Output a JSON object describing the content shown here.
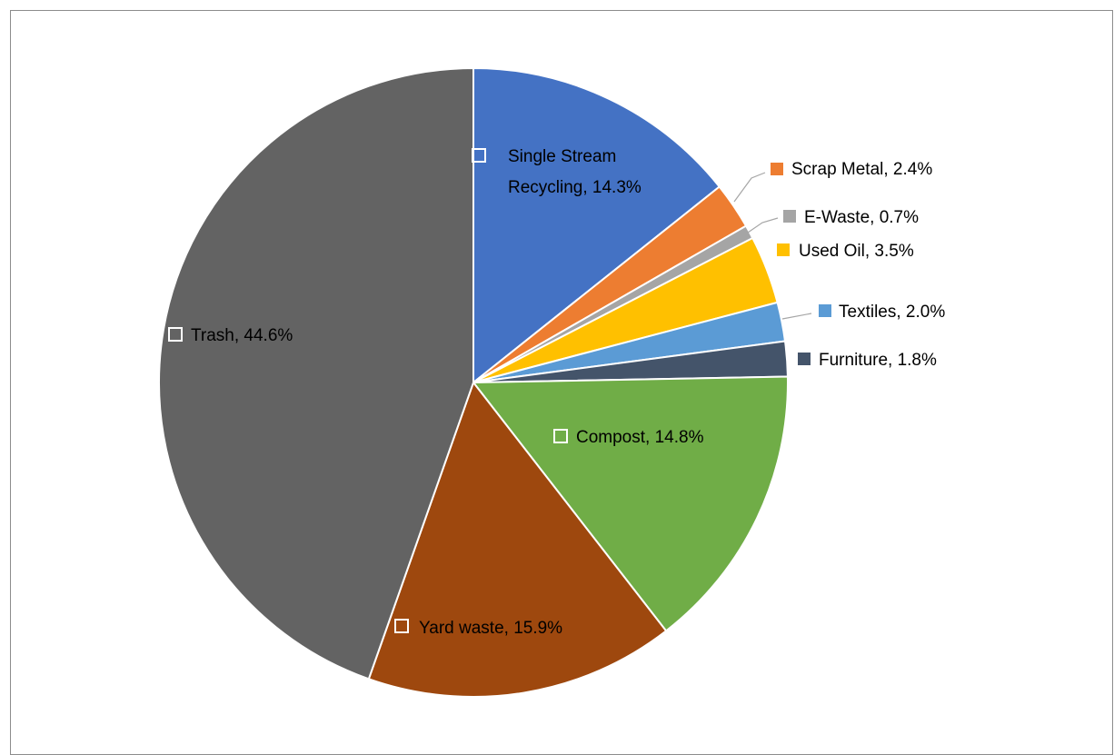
{
  "chart_data": {
    "type": "pie",
    "title": "",
    "slices": [
      {
        "label": "Single Stream Recycling",
        "value": 14.3,
        "display": "14.3%",
        "color": "#4472C4"
      },
      {
        "label": "Scrap Metal",
        "value": 2.4,
        "display": "2.4%",
        "color": "#ED7D31"
      },
      {
        "label": "E-Waste",
        "value": 0.7,
        "display": "0.7%",
        "color": "#A5A5A5"
      },
      {
        "label": "Used Oil",
        "value": 3.5,
        "display": "3.5%",
        "color": "#FFC000"
      },
      {
        "label": "Textiles",
        "value": 2.0,
        "display": "2.0%",
        "color": "#5B9BD5"
      },
      {
        "label": "Furniture",
        "value": 1.8,
        "display": "1.8%",
        "color": "#44546A"
      },
      {
        "label": "Compost",
        "value": 14.8,
        "display": "14.8%",
        "color": "#70AD47"
      },
      {
        "label": "Yard waste",
        "value": 15.9,
        "display": "15.9%",
        "color": "#9E480E"
      },
      {
        "label": "Trash",
        "value": 44.6,
        "display": "44.6%",
        "color": "#636363"
      }
    ],
    "start_angle_deg": 0,
    "direction": "clockwise",
    "legend": "none",
    "data_labels": "category name and percentage"
  }
}
